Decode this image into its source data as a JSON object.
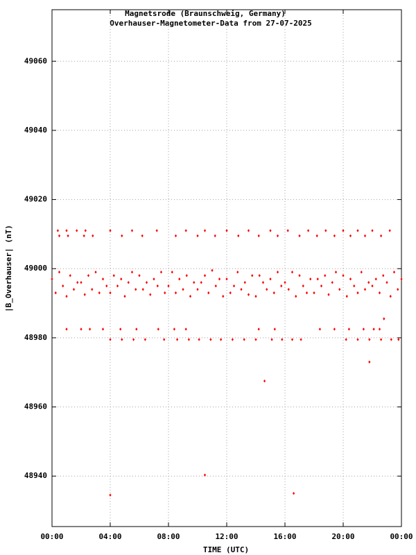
{
  "chart_data": {
    "type": "scatter",
    "title": "Magnetsrode (Braunschweig, Germany)",
    "subtitle": "Overhauser-Magnetometer-Data from 27-07-2025",
    "x_label": "TIME (UTC)",
    "y_label": "|B_Overhauser| (nT)",
    "color": "#ff0000",
    "grid": true,
    "xlim": [
      0,
      24
    ],
    "xticks": [
      {
        "value": 0,
        "label": "00:00"
      },
      {
        "value": 4,
        "label": "04:00"
      },
      {
        "value": 8,
        "label": "08:00"
      },
      {
        "value": 12,
        "label": "12:00"
      },
      {
        "value": 16,
        "label": "16:00"
      },
      {
        "value": 20,
        "label": "20:00"
      },
      {
        "value": 24,
        "label": "00:00"
      }
    ],
    "ylim": [
      48925.4,
      49074.9
    ],
    "yticks": [
      48940,
      48960,
      48980,
      49000,
      49020,
      49040,
      49060
    ],
    "x": [
      0.4,
      0.5,
      1.0,
      1.1,
      1.7,
      2.2,
      2.3,
      2.8,
      4.0,
      4.8,
      5.5,
      6.2,
      7.2,
      8.5,
      9.2,
      10.0,
      10.5,
      11.2,
      12.0,
      12.8,
      13.5,
      14.2,
      15.0,
      15.5,
      16.2,
      17.0,
      17.6,
      18.2,
      18.8,
      19.4,
      20.0,
      20.5,
      21.0,
      21.5,
      22.0,
      22.6,
      23.2,
      1.0,
      2.0,
      2.6,
      3.5,
      4.7,
      5.8,
      7.3,
      8.4,
      9.2,
      14.2,
      15.3,
      18.4,
      19.4,
      20.4,
      21.4,
      22.1,
      22.5,
      4.0,
      4.8,
      5.6,
      6.4,
      7.7,
      8.6,
      9.4,
      10.1,
      10.9,
      11.6,
      12.4,
      13.2,
      14.0,
      15.1,
      15.8,
      16.5,
      17.1,
      20.2,
      21.0,
      21.8,
      22.6,
      23.3,
      23.8,
      0,
      0.25,
      0.5,
      0.75,
      1,
      1.25,
      1.5,
      1.75,
      2,
      2.25,
      2.5,
      2.75,
      3,
      3.25,
      3.5,
      3.75,
      4,
      4.25,
      4.5,
      4.75,
      5,
      5.25,
      5.5,
      5.75,
      6,
      6.25,
      6.5,
      6.75,
      7,
      7.25,
      7.5,
      7.75,
      8,
      8.25,
      8.5,
      8.75,
      9,
      9.25,
      9.5,
      9.75,
      10,
      10.25,
      10.5,
      10.75,
      11,
      11.25,
      11.5,
      11.75,
      12,
      12.25,
      12.5,
      12.75,
      13,
      13.25,
      13.5,
      13.75,
      14,
      14.25,
      14.5,
      14.75,
      15,
      15.25,
      15.5,
      15.75,
      16,
      16.25,
      16.5,
      16.75,
      17,
      17.25,
      17.5,
      17.75,
      18,
      18.25,
      18.5,
      18.75,
      19,
      19.25,
      19.5,
      19.75,
      20,
      20.25,
      20.5,
      20.75,
      21,
      21.25,
      21.5,
      21.75,
      22,
      22.25,
      22.5,
      22.75,
      23,
      23.25,
      23.5,
      23.75,
      24,
      4.0,
      10.5,
      16.6,
      14.6,
      21.8,
      22.8
    ],
    "values": [
      49011,
      49009.5,
      49011,
      49009.5,
      49011,
      49009.5,
      49011,
      49009.5,
      49011,
      49009.5,
      49011,
      49009.5,
      49011,
      49009.5,
      49011,
      49009.5,
      49011,
      49009.5,
      49011,
      49009.5,
      49011,
      49009.5,
      49011,
      49009.5,
      49011,
      49009.5,
      49011,
      49009.5,
      49011,
      49009.5,
      49011,
      49009.5,
      49011,
      49009.5,
      49011,
      49009.5,
      49011,
      48982.5,
      48982.5,
      48982.5,
      48982.5,
      48982.5,
      48982.5,
      48982.5,
      48982.5,
      48982.5,
      48982.5,
      48982.5,
      48982.5,
      48982.5,
      48982.5,
      48982.5,
      48982.5,
      48982.5,
      48979.5,
      48979.5,
      48979.5,
      48979.5,
      48979.5,
      48979.5,
      48979.5,
      48979.5,
      48979.5,
      48979.5,
      48979.5,
      48979.5,
      48979.5,
      48979.5,
      48979.5,
      48979.5,
      48979.5,
      48979.5,
      48979.5,
      48979.5,
      48979.5,
      48979.5,
      48979.5,
      48997,
      48993,
      48999,
      48995,
      48992,
      48998,
      48994,
      48996,
      48996,
      48992.5,
      48998,
      48994,
      48999,
      48993,
      48997,
      48995,
      48993,
      48998,
      48995,
      48997,
      48992,
      48996,
      48999,
      48994,
      48998,
      48994,
      48996,
      48992.5,
      48997,
      48995,
      48999,
      48993,
      48995,
      48999,
      48993,
      48997,
      48994,
      48998,
      48992,
      48996,
      48994,
      48996,
      48998,
      48993,
      48999.5,
      48995,
      48997,
      48992,
      48997,
      48993,
      48995,
      48999,
      48994,
      48996,
      48992.5,
      48998,
      48992,
      48998,
      48996,
      48994,
      48997,
      48993,
      48999,
      48995,
      48996,
      48994,
      48999,
      48992,
      48998,
      48995,
      48993,
      48997,
      48993,
      48997,
      48995,
      48998,
      48992.5,
      48996,
      48999,
      48994,
      48998,
      48992,
      48997,
      48995,
      48993,
      48999,
      48994,
      48996,
      48995,
      48997,
      48993,
      48998,
      48996,
      48992,
      48999,
      48994,
      48997,
      48934.5,
      48940.3,
      48935,
      48967.5,
      48973,
      48985.5
    ]
  }
}
